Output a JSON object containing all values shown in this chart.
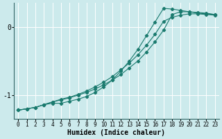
{
  "title": "",
  "xlabel": "Humidex (Indice chaleur)",
  "ylabel": "",
  "bg_color": "#cceaec",
  "grid_color": "#ffffff",
  "line_color": "#1a7a6e",
  "xlim": [
    -0.5,
    23.5
  ],
  "ylim": [
    -1.35,
    0.35
  ],
  "xticks": [
    0,
    1,
    2,
    3,
    4,
    5,
    6,
    7,
    8,
    9,
    10,
    11,
    12,
    13,
    14,
    15,
    16,
    17,
    18,
    19,
    20,
    21,
    22,
    23
  ],
  "yticks": [
    -1,
    0
  ],
  "line1_x": [
    0,
    1,
    2,
    3,
    4,
    5,
    6,
    7,
    8,
    9,
    10,
    11,
    12,
    13,
    14,
    15,
    16,
    17,
    18,
    19,
    20,
    21,
    22,
    23
  ],
  "line1_y": [
    -1.22,
    -1.2,
    -1.18,
    -1.14,
    -1.1,
    -1.07,
    -1.04,
    -1.0,
    -0.96,
    -0.91,
    -0.85,
    -0.78,
    -0.7,
    -0.6,
    -0.5,
    -0.37,
    -0.22,
    -0.05,
    0.18,
    0.22,
    0.22,
    0.21,
    0.2,
    0.18
  ],
  "line2_x": [
    0,
    1,
    2,
    3,
    4,
    5,
    6,
    7,
    8,
    9,
    10,
    11,
    12,
    13,
    14,
    15,
    16,
    17,
    18,
    19,
    20,
    21,
    22,
    23
  ],
  "line2_y": [
    -1.22,
    -1.2,
    -1.18,
    -1.14,
    -1.12,
    -1.12,
    -1.09,
    -1.06,
    -1.02,
    -0.96,
    -0.88,
    -0.78,
    -0.65,
    -0.5,
    -0.33,
    -0.13,
    0.07,
    0.27,
    0.26,
    0.24,
    0.22,
    0.2,
    0.19,
    0.18
  ],
  "line3_x": [
    0,
    1,
    2,
    3,
    4,
    5,
    6,
    7,
    8,
    9,
    10,
    11,
    12,
    13,
    14,
    15,
    16,
    17,
    18,
    19,
    20,
    21,
    22,
    23
  ],
  "line3_y": [
    -1.22,
    -1.2,
    -1.18,
    -1.14,
    -1.1,
    -1.06,
    -1.03,
    -0.99,
    -0.94,
    -0.88,
    -0.81,
    -0.73,
    -0.63,
    -0.53,
    -0.41,
    -0.27,
    -0.11,
    0.08,
    0.14,
    0.17,
    0.19,
    0.19,
    0.18,
    0.17
  ]
}
